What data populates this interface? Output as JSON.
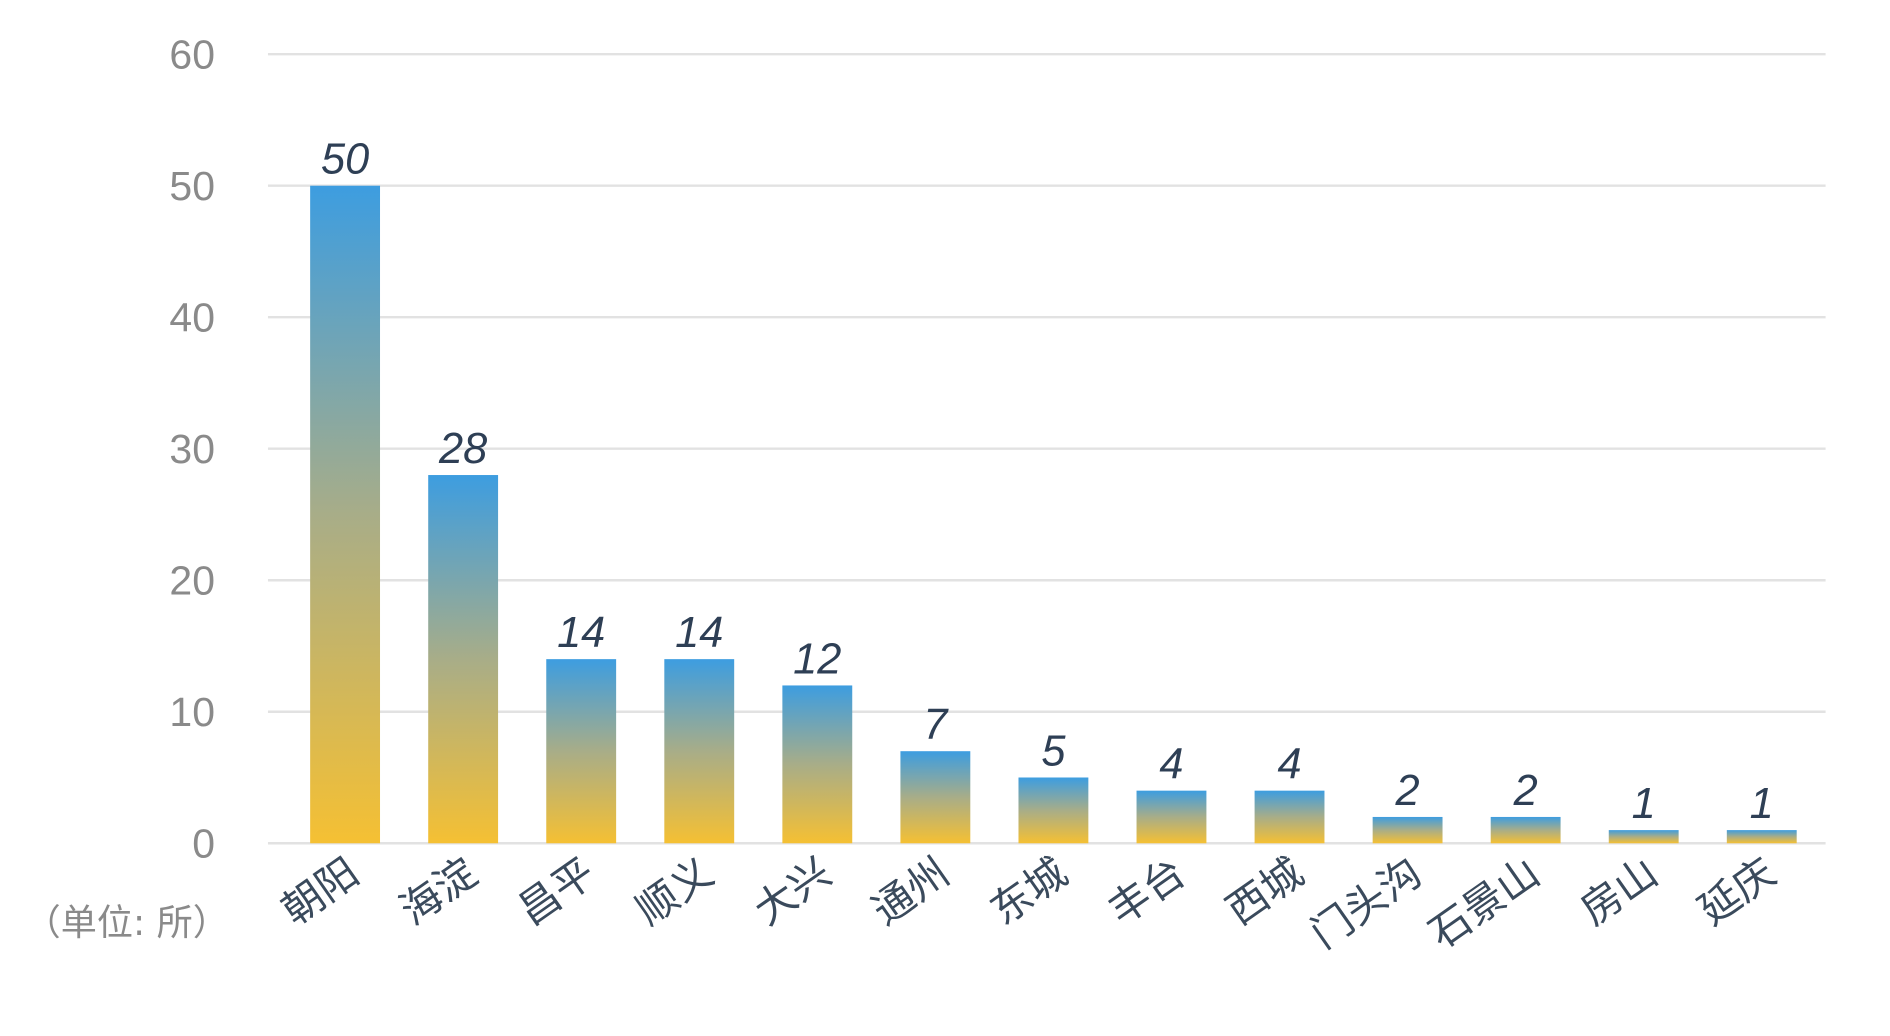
{
  "chart_data": {
    "type": "bar",
    "categories": [
      "朝阳",
      "海淀",
      "昌平",
      "顺义",
      "大兴",
      "通州",
      "东城",
      "丰台",
      "西城",
      "门头沟",
      "石景山",
      "房山",
      "延庆"
    ],
    "values": [
      50,
      28,
      14,
      14,
      12,
      7,
      5,
      4,
      4,
      2,
      2,
      1,
      1
    ],
    "data_labels": [
      "50",
      "28",
      "14",
      "14",
      "12",
      "7",
      "5",
      "4",
      "4",
      "2",
      "2",
      "1",
      "1"
    ],
    "unit_label": "（单位: 所）",
    "title": "",
    "xlabel": "",
    "ylabel": "",
    "ylim": [
      0,
      60
    ],
    "yticks": [
      "0",
      "10",
      "20",
      "30",
      "40",
      "50",
      "60"
    ],
    "grid": true,
    "legend": "none",
    "colors": {
      "bar_top": "#3d9de0",
      "bar_bottom": "#f5c033",
      "grid": "#e2e2e2",
      "label": "#2e3f55"
    }
  }
}
